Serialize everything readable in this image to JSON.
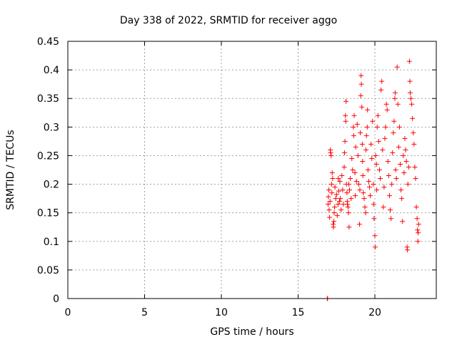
{
  "chart_data": {
    "type": "scatter",
    "title": "Day 338 of 2022, SRMTID for receiver aggo",
    "xlabel": "GPS time / hours",
    "ylabel": "SRMTID / TECUs",
    "xlim": [
      0,
      24
    ],
    "ylim": [
      0,
      0.45
    ],
    "xticks": [
      0,
      5,
      10,
      15,
      20
    ],
    "xtick_labels": [
      "0",
      "5",
      "10",
      "15",
      "20"
    ],
    "yticks": [
      0,
      0.05,
      0.1,
      0.15,
      0.2,
      0.25,
      0.3,
      0.35,
      0.4,
      0.45
    ],
    "ytick_labels": [
      "0",
      "0.05",
      "0.1",
      "0.15",
      "0.2",
      "0.25",
      "0.3",
      "0.35",
      "0.4",
      "0.45"
    ],
    "grid": true,
    "marker": "+",
    "color": "#ff0000",
    "series": [
      {
        "name": "SRMTID",
        "points": [
          [
            16.9,
            0.0
          ],
          [
            16.92,
            0.0
          ],
          [
            16.95,
            0.165
          ],
          [
            16.97,
            0.178
          ],
          [
            17.0,
            0.19
          ],
          [
            17.02,
            0.155
          ],
          [
            17.05,
            0.142
          ],
          [
            17.08,
            0.17
          ],
          [
            17.1,
            0.26
          ],
          [
            17.12,
            0.255
          ],
          [
            17.15,
            0.25
          ],
          [
            17.18,
            0.2
          ],
          [
            17.2,
            0.185
          ],
          [
            17.22,
            0.22
          ],
          [
            17.25,
            0.21
          ],
          [
            17.28,
            0.13
          ],
          [
            17.3,
            0.125
          ],
          [
            17.33,
            0.135
          ],
          [
            17.35,
            0.15
          ],
          [
            17.38,
            0.16
          ],
          [
            17.4,
            0.195
          ],
          [
            17.45,
            0.175
          ],
          [
            17.5,
            0.182
          ],
          [
            17.55,
            0.145
          ],
          [
            17.6,
            0.165
          ],
          [
            17.62,
            0.21
          ],
          [
            17.65,
            0.188
          ],
          [
            17.7,
            0.17
          ],
          [
            17.72,
            0.205
          ],
          [
            17.75,
            0.175
          ],
          [
            17.8,
            0.155
          ],
          [
            17.85,
            0.215
          ],
          [
            17.9,
            0.19
          ],
          [
            17.95,
            0.165
          ],
          [
            18.0,
            0.23
          ],
          [
            18.02,
            0.255
          ],
          [
            18.05,
            0.275
          ],
          [
            18.08,
            0.32
          ],
          [
            18.1,
            0.31
          ],
          [
            18.12,
            0.345
          ],
          [
            18.15,
            0.2
          ],
          [
            18.18,
            0.185
          ],
          [
            18.2,
            0.17
          ],
          [
            18.22,
            0.165
          ],
          [
            18.25,
            0.16
          ],
          [
            18.28,
            0.15
          ],
          [
            18.3,
            0.2
          ],
          [
            18.32,
            0.125
          ],
          [
            18.35,
            0.19
          ],
          [
            18.4,
            0.21
          ],
          [
            18.45,
            0.175
          ],
          [
            18.5,
            0.245
          ],
          [
            18.55,
            0.225
          ],
          [
            18.6,
            0.3
          ],
          [
            18.62,
            0.285
          ],
          [
            18.65,
            0.32
          ],
          [
            18.7,
            0.22
          ],
          [
            18.72,
            0.18
          ],
          [
            18.75,
            0.265
          ],
          [
            18.8,
            0.205
          ],
          [
            18.85,
            0.305
          ],
          [
            18.9,
            0.25
          ],
          [
            18.95,
            0.2
          ],
          [
            19.0,
            0.13
          ],
          [
            19.02,
            0.19
          ],
          [
            19.05,
            0.29
          ],
          [
            19.08,
            0.355
          ],
          [
            19.1,
            0.39
          ],
          [
            19.12,
            0.375
          ],
          [
            19.15,
            0.335
          ],
          [
            19.18,
            0.27
          ],
          [
            19.2,
            0.24
          ],
          [
            19.22,
            0.215
          ],
          [
            19.25,
            0.185
          ],
          [
            19.3,
            0.175
          ],
          [
            19.35,
            0.16
          ],
          [
            19.4,
            0.15
          ],
          [
            19.42,
            0.26
          ],
          [
            19.45,
            0.285
          ],
          [
            19.5,
            0.3
          ],
          [
            19.52,
            0.33
          ],
          [
            19.55,
            0.225
          ],
          [
            19.6,
            0.205
          ],
          [
            19.65,
            0.195
          ],
          [
            19.7,
            0.18
          ],
          [
            19.75,
            0.27
          ],
          [
            19.8,
            0.245
          ],
          [
            19.85,
            0.31
          ],
          [
            19.9,
            0.2
          ],
          [
            19.92,
            0.165
          ],
          [
            19.95,
            0.14
          ],
          [
            20.0,
            0.11
          ],
          [
            20.02,
            0.09
          ],
          [
            20.05,
            0.25
          ],
          [
            20.1,
            0.235
          ],
          [
            20.12,
            0.19
          ],
          [
            20.15,
            0.3
          ],
          [
            20.2,
            0.32
          ],
          [
            20.25,
            0.275
          ],
          [
            20.3,
            0.225
          ],
          [
            20.35,
            0.21
          ],
          [
            20.4,
            0.365
          ],
          [
            20.45,
            0.38
          ],
          [
            20.5,
            0.26
          ],
          [
            20.55,
            0.16
          ],
          [
            20.6,
            0.195
          ],
          [
            20.65,
            0.28
          ],
          [
            20.7,
            0.3
          ],
          [
            20.75,
            0.34
          ],
          [
            20.8,
            0.33
          ],
          [
            20.85,
            0.24
          ],
          [
            20.9,
            0.215
          ],
          [
            20.95,
            0.18
          ],
          [
            21.0,
            0.155
          ],
          [
            21.05,
            0.14
          ],
          [
            21.1,
            0.2
          ],
          [
            21.15,
            0.255
          ],
          [
            21.2,
            0.29
          ],
          [
            21.25,
            0.31
          ],
          [
            21.3,
            0.35
          ],
          [
            21.32,
            0.36
          ],
          [
            21.35,
            0.225
          ],
          [
            21.4,
            0.21
          ],
          [
            21.45,
            0.405
          ],
          [
            21.5,
            0.34
          ],
          [
            21.55,
            0.265
          ],
          [
            21.6,
            0.3
          ],
          [
            21.65,
            0.235
          ],
          [
            21.7,
            0.19
          ],
          [
            21.75,
            0.175
          ],
          [
            21.8,
            0.135
          ],
          [
            21.85,
            0.25
          ],
          [
            21.9,
            0.22
          ],
          [
            21.95,
            0.28
          ],
          [
            22.0,
            0.26
          ],
          [
            22.05,
            0.24
          ],
          [
            22.1,
            0.09
          ],
          [
            22.12,
            0.085
          ],
          [
            22.15,
            0.2
          ],
          [
            22.2,
            0.23
          ],
          [
            22.25,
            0.415
          ],
          [
            22.28,
            0.38
          ],
          [
            22.3,
            0.36
          ],
          [
            22.35,
            0.35
          ],
          [
            22.4,
            0.34
          ],
          [
            22.45,
            0.315
          ],
          [
            22.5,
            0.29
          ],
          [
            22.55,
            0.27
          ],
          [
            22.6,
            0.23
          ],
          [
            22.65,
            0.21
          ],
          [
            22.7,
            0.16
          ],
          [
            22.75,
            0.14
          ],
          [
            22.78,
            0.12
          ],
          [
            22.8,
            0.1
          ],
          [
            22.82,
            0.115
          ],
          [
            22.85,
            0.13
          ]
        ]
      }
    ]
  }
}
